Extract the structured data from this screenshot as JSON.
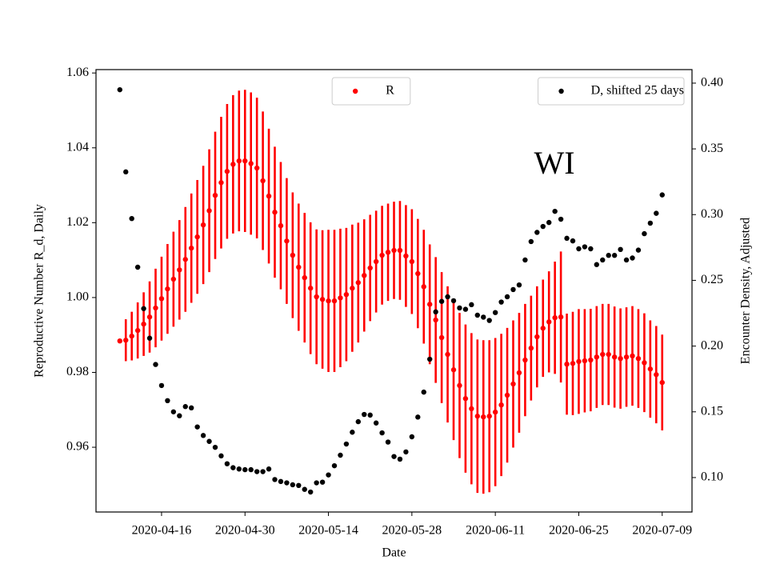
{
  "chart_data": {
    "type": "errorbar-dual",
    "annotation": "WI",
    "xlabel": "Date",
    "ylabel": "Reproductive Number R_d, Daily",
    "y2label": "Encounter Density, Adjusted",
    "x": [
      "2020-04-09",
      "2020-04-10",
      "2020-04-11",
      "2020-04-12",
      "2020-04-13",
      "2020-04-14",
      "2020-04-15",
      "2020-04-16",
      "2020-04-17",
      "2020-04-18",
      "2020-04-19",
      "2020-04-20",
      "2020-04-21",
      "2020-04-22",
      "2020-04-23",
      "2020-04-24",
      "2020-04-25",
      "2020-04-26",
      "2020-04-27",
      "2020-04-28",
      "2020-04-29",
      "2020-04-30",
      "2020-05-01",
      "2020-05-02",
      "2020-05-03",
      "2020-05-04",
      "2020-05-05",
      "2020-05-06",
      "2020-05-07",
      "2020-05-08",
      "2020-05-09",
      "2020-05-10",
      "2020-05-11",
      "2020-05-12",
      "2020-05-13",
      "2020-05-14",
      "2020-05-15",
      "2020-05-16",
      "2020-05-17",
      "2020-05-18",
      "2020-05-19",
      "2020-05-20",
      "2020-05-21",
      "2020-05-22",
      "2020-05-23",
      "2020-05-24",
      "2020-05-25",
      "2020-05-26",
      "2020-05-27",
      "2020-05-28",
      "2020-05-29",
      "2020-05-30",
      "2020-05-31",
      "2020-06-01",
      "2020-06-02",
      "2020-06-03",
      "2020-06-04",
      "2020-06-05",
      "2020-06-06",
      "2020-06-07",
      "2020-06-08",
      "2020-06-09",
      "2020-06-10",
      "2020-06-11",
      "2020-06-12",
      "2020-06-13",
      "2020-06-14",
      "2020-06-15",
      "2020-06-16",
      "2020-06-17",
      "2020-06-18",
      "2020-06-19",
      "2020-06-20",
      "2020-06-21",
      "2020-06-22",
      "2020-06-23",
      "2020-06-24",
      "2020-06-25",
      "2020-06-26",
      "2020-06-27",
      "2020-06-28",
      "2020-06-29",
      "2020-06-30",
      "2020-07-01",
      "2020-07-02",
      "2020-07-03",
      "2020-07-04",
      "2020-07-05",
      "2020-07-06",
      "2020-07-07",
      "2020-07-08",
      "2020-07-09"
    ],
    "series": [
      {
        "name": "R",
        "color": "#ff0000",
        "legend": "upper center",
        "values": [
          0.9884,
          0.9886,
          0.9897,
          0.9912,
          0.9929,
          0.9948,
          0.9972,
          0.9997,
          1.0023,
          1.0049,
          1.0074,
          1.0102,
          1.0132,
          1.0162,
          1.0194,
          1.0232,
          1.0273,
          1.0307,
          1.0337,
          1.0356,
          1.0365,
          1.0365,
          1.0358,
          1.0346,
          1.0312,
          1.0271,
          1.0228,
          1.0192,
          1.0151,
          1.0113,
          1.0081,
          1.0053,
          1.0025,
          1.0002,
          0.9995,
          0.9991,
          0.9991,
          0.9999,
          1.0008,
          1.0025,
          1.004,
          1.0059,
          1.0079,
          1.0096,
          1.0113,
          1.0121,
          1.0126,
          1.0126,
          1.0111,
          1.0096,
          1.0064,
          1.0029,
          0.9982,
          0.994,
          0.9893,
          0.9848,
          0.9807,
          0.9765,
          0.973,
          0.9703,
          0.9683,
          0.9681,
          0.9683,
          0.9694,
          0.9713,
          0.9739,
          0.9769,
          0.9799,
          0.9833,
          0.9865,
          0.9895,
          0.9918,
          0.9935,
          0.9946,
          0.9948,
          0.9822,
          0.9824,
          0.9829,
          0.9831,
          0.9833,
          0.9841,
          0.9848,
          0.9848,
          0.9841,
          0.9837,
          0.9841,
          0.9844,
          0.9837,
          0.9826,
          0.9809,
          0.9794,
          0.9773
        ],
        "errors": [
          0.0005,
          0.0056,
          0.0065,
          0.0075,
          0.0085,
          0.0095,
          0.0105,
          0.0112,
          0.012,
          0.0127,
          0.0133,
          0.014,
          0.0146,
          0.0152,
          0.0158,
          0.0164,
          0.017,
          0.0176,
          0.018,
          0.0185,
          0.0188,
          0.019,
          0.019,
          0.0188,
          0.0185,
          0.018,
          0.0175,
          0.017,
          0.0168,
          0.0168,
          0.017,
          0.0173,
          0.0176,
          0.018,
          0.0185,
          0.019,
          0.019,
          0.0185,
          0.0178,
          0.017,
          0.016,
          0.015,
          0.0142,
          0.0136,
          0.0132,
          0.013,
          0.013,
          0.0132,
          0.0136,
          0.014,
          0.0146,
          0.0152,
          0.016,
          0.0168,
          0.0175,
          0.0182,
          0.0188,
          0.0194,
          0.0198,
          0.0202,
          0.0205,
          0.0205,
          0.0203,
          0.0198,
          0.019,
          0.018,
          0.017,
          0.016,
          0.015,
          0.014,
          0.0135,
          0.013,
          0.0135,
          0.015,
          0.0175,
          0.0135,
          0.0138,
          0.014,
          0.0138,
          0.0137,
          0.0136,
          0.0135,
          0.0135,
          0.0135,
          0.0134,
          0.0133,
          0.0133,
          0.0132,
          0.0132,
          0.013,
          0.013,
          0.0128
        ]
      },
      {
        "name": "D, shifted 25 days",
        "color": "#000000",
        "axis": "y2",
        "legend": "upper right",
        "values": [
          0.395,
          0.3325,
          0.297,
          0.26,
          0.2285,
          0.206,
          0.186,
          0.17,
          0.1585,
          0.15,
          0.147,
          0.154,
          0.153,
          0.1385,
          0.132,
          0.1275,
          0.123,
          0.1165,
          0.1105,
          0.1075,
          0.1065,
          0.106,
          0.106,
          0.1045,
          0.1045,
          0.1065,
          0.0985,
          0.097,
          0.096,
          0.0945,
          0.094,
          0.091,
          0.089,
          0.096,
          0.0965,
          0.102,
          0.109,
          0.117,
          0.1255,
          0.1345,
          0.1425,
          0.148,
          0.1475,
          0.1415,
          0.134,
          0.127,
          0.116,
          0.114,
          0.1195,
          0.131,
          0.146,
          0.165,
          0.19,
          0.226,
          0.234,
          0.2375,
          0.2345,
          0.229,
          0.228,
          0.2315,
          0.2235,
          0.222,
          0.2195,
          0.2255,
          0.2335,
          0.2375,
          0.243,
          0.2465,
          0.2655,
          0.2795,
          0.2865,
          0.291,
          0.294,
          0.3025,
          0.2965,
          0.282,
          0.28,
          0.274,
          0.2755,
          0.274,
          0.262,
          0.2655,
          0.269,
          0.269,
          0.2735,
          0.2655,
          0.267,
          0.273,
          0.2855,
          0.2935,
          0.301,
          0.315
        ]
      }
    ],
    "xlim": [
      "2020-04-05",
      "2020-07-14"
    ],
    "xticks": [
      "2020-04-16",
      "2020-04-30",
      "2020-05-14",
      "2020-05-28",
      "2020-06-11",
      "2020-06-25",
      "2020-07-09"
    ],
    "ylim": [
      0.9427,
      1.0609
    ],
    "yticks": [
      0.96,
      0.98,
      {
        "value": 1,
        "label": "1.00"
      },
      1.02,
      1.04,
      1.06
    ],
    "y2lim": [
      0.0738,
      0.4103
    ],
    "y2ticks": [
      {
        "value": 0.1,
        "label": "0.10"
      },
      0.15,
      {
        "value": 0.2,
        "label": "0.20"
      },
      0.25,
      {
        "value": 0.3,
        "label": "0.30"
      },
      0.35,
      {
        "value": 0.4,
        "label": "0.40"
      }
    ]
  }
}
